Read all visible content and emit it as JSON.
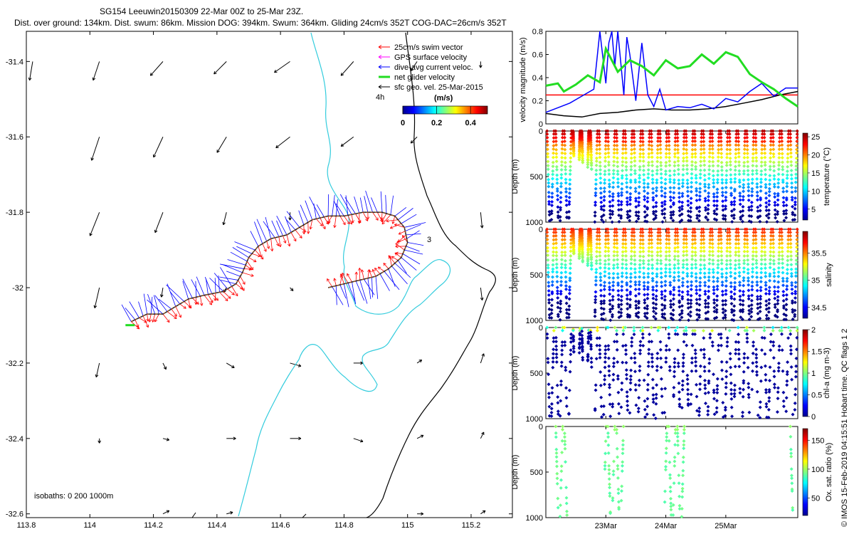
{
  "header": {
    "title_line1": "SG154 Leeuwin20150309 22-Mar 00Z to 25-Mar 23Z.",
    "title_line2": "Dist. over ground: 134km. Dist. swum: 86km. Mission DOG: 394km. Swum: 364km. Gliding 24cm/s 352T COG-DAC=26cm/s 352T"
  },
  "footer": {
    "credit": "© IMOS 15-Feb-2019 04:15:51 Hobart time. QC flags 1  2"
  },
  "colors": {
    "swim_vector": "#ff0000",
    "gps_velocity": "#ff00ff",
    "dac": "#0000ff",
    "net_velocity": "#22dd22",
    "geostrophic": "#000000",
    "isobath_200": "#33ccdd",
    "coast": "#000000"
  },
  "chart_data": [
    {
      "id": "map",
      "type": "vector-map",
      "xticks": [
        "113.8",
        "114",
        "114.2",
        "114.4",
        "114.6",
        "114.8",
        "115",
        "115.2"
      ],
      "yticks": [
        "-31.4",
        "-31.6",
        "-31.8",
        "-32",
        "-32.2",
        "-32.4",
        "-32.6"
      ],
      "xlim": [
        113.8,
        115.33
      ],
      "ylim": [
        -32.61,
        -31.32
      ],
      "legend": [
        {
          "label": "25cm/s swim vector",
          "color": "#ff0000"
        },
        {
          "label": "GPS surface velocity",
          "color": "#ff00ff"
        },
        {
          "label": "dive-avg current veloc.",
          "color": "#0000ff"
        },
        {
          "label": "net glider velocity",
          "color": "#22dd22"
        },
        {
          "label": "sfc geo. vel. 25-Mar-2015",
          "color": "#000000"
        }
      ],
      "time_step_label": "4h",
      "colorbar": {
        "title": "(m/s)",
        "ticks": [
          "0",
          "0.2",
          "0.4"
        ],
        "range": [
          0,
          0.5
        ]
      },
      "isobaths_label": "isobaths: 0   200  1000m",
      "track_day_labels": [
        "3"
      ],
      "track": [
        [
          114.13,
          -32.09
        ],
        [
          114.18,
          -32.07
        ],
        [
          114.23,
          -32.07
        ],
        [
          114.27,
          -32.05
        ],
        [
          114.31,
          -32.03
        ],
        [
          114.36,
          -32.02
        ],
        [
          114.42,
          -32.01
        ],
        [
          114.46,
          -31.99
        ],
        [
          114.48,
          -31.96
        ],
        [
          114.5,
          -31.92
        ],
        [
          114.53,
          -31.89
        ],
        [
          114.57,
          -31.87
        ],
        [
          114.62,
          -31.86
        ],
        [
          114.66,
          -31.84
        ],
        [
          114.7,
          -31.82
        ],
        [
          114.75,
          -31.81
        ],
        [
          114.8,
          -31.81
        ],
        [
          114.86,
          -31.8
        ],
        [
          114.92,
          -31.8
        ],
        [
          114.96,
          -31.81
        ],
        [
          114.99,
          -31.84
        ],
        [
          115.0,
          -31.88
        ],
        [
          114.98,
          -31.92
        ],
        [
          114.94,
          -31.95
        ],
        [
          114.9,
          -31.97
        ],
        [
          114.85,
          -31.98
        ],
        [
          114.8,
          -31.99
        ],
        [
          114.75,
          -32.0
        ]
      ],
      "geostrophic_vectors": [
        {
          "lon": 113.82,
          "lat": -31.4,
          "u": -0.02,
          "v": -0.12
        },
        {
          "lon": 114.03,
          "lat": -31.4,
          "u": -0.04,
          "v": -0.12
        },
        {
          "lon": 114.23,
          "lat": -31.4,
          "u": -0.08,
          "v": -0.09
        },
        {
          "lon": 114.43,
          "lat": -31.4,
          "u": -0.08,
          "v": -0.08
        },
        {
          "lon": 114.63,
          "lat": -31.4,
          "u": -0.1,
          "v": -0.07
        },
        {
          "lon": 114.83,
          "lat": -31.4,
          "u": -0.08,
          "v": -0.09
        },
        {
          "lon": 115.03,
          "lat": -31.4,
          "u": -0.04,
          "v": -0.06
        },
        {
          "lon": 115.23,
          "lat": -31.4,
          "u": 0.0,
          "v": -0.04
        },
        {
          "lon": 114.03,
          "lat": -31.6,
          "u": -0.05,
          "v": -0.15
        },
        {
          "lon": 114.23,
          "lat": -31.6,
          "u": -0.06,
          "v": -0.13
        },
        {
          "lon": 114.43,
          "lat": -31.6,
          "u": -0.06,
          "v": -0.1
        },
        {
          "lon": 114.63,
          "lat": -31.6,
          "u": -0.09,
          "v": -0.07
        },
        {
          "lon": 114.83,
          "lat": -31.6,
          "u": -0.08,
          "v": -0.06
        },
        {
          "lon": 115.03,
          "lat": -31.6,
          "u": -0.04,
          "v": -0.04
        },
        {
          "lon": 114.03,
          "lat": -31.8,
          "u": -0.06,
          "v": -0.15
        },
        {
          "lon": 114.23,
          "lat": -31.8,
          "u": -0.05,
          "v": -0.13
        },
        {
          "lon": 114.43,
          "lat": -31.8,
          "u": -0.02,
          "v": -0.08
        },
        {
          "lon": 114.63,
          "lat": -31.8,
          "u": 0.0,
          "v": -0.05
        },
        {
          "lon": 115.23,
          "lat": -31.8,
          "u": 0.01,
          "v": -0.1
        },
        {
          "lon": 114.03,
          "lat": -32.0,
          "u": -0.03,
          "v": -0.13
        },
        {
          "lon": 114.23,
          "lat": -32.0,
          "u": -0.01,
          "v": -0.06
        },
        {
          "lon": 114.43,
          "lat": -32.0,
          "u": -0.02,
          "v": -0.03
        },
        {
          "lon": 114.63,
          "lat": -32.0,
          "u": 0.02,
          "v": -0.02
        },
        {
          "lon": 115.23,
          "lat": -32.0,
          "u": 0.01,
          "v": -0.08
        },
        {
          "lon": 114.03,
          "lat": -32.2,
          "u": -0.02,
          "v": -0.09
        },
        {
          "lon": 114.23,
          "lat": -32.2,
          "u": 0.02,
          "v": -0.04
        },
        {
          "lon": 114.43,
          "lat": -32.2,
          "u": 0.05,
          "v": -0.03
        },
        {
          "lon": 114.63,
          "lat": -32.2,
          "u": 0.07,
          "v": -0.02
        },
        {
          "lon": 114.83,
          "lat": -32.2,
          "u": 0.06,
          "v": 0.0
        },
        {
          "lon": 115.03,
          "lat": -32.2,
          "u": 0.03,
          "v": 0.02
        },
        {
          "lon": 115.23,
          "lat": -32.2,
          "u": 0.02,
          "v": 0.06
        },
        {
          "lon": 114.03,
          "lat": -32.4,
          "u": 0.0,
          "v": -0.03
        },
        {
          "lon": 114.23,
          "lat": -32.4,
          "u": 0.04,
          "v": -0.01
        },
        {
          "lon": 114.43,
          "lat": -32.4,
          "u": 0.06,
          "v": 0.0
        },
        {
          "lon": 114.63,
          "lat": -32.4,
          "u": 0.07,
          "v": 0.0
        },
        {
          "lon": 114.83,
          "lat": -32.4,
          "u": 0.06,
          "v": -0.02
        },
        {
          "lon": 115.03,
          "lat": -32.4,
          "u": 0.04,
          "v": 0.02
        },
        {
          "lon": 115.23,
          "lat": -32.4,
          "u": 0.02,
          "v": 0.04
        },
        {
          "lon": 114.23,
          "lat": -32.6,
          "u": 0.04,
          "v": 0.02
        },
        {
          "lon": 114.43,
          "lat": -32.6,
          "u": 0.04,
          "v": 0.01
        },
        {
          "lon": 115.03,
          "lat": -32.6,
          "u": 0.04,
          "v": 0.0
        },
        {
          "lon": 115.23,
          "lat": -32.6,
          "u": 0.03,
          "v": 0.02
        }
      ]
    },
    {
      "id": "velocity",
      "type": "line",
      "ylabel": "velocity magnitude (m/s)",
      "yticks": [
        "0",
        "0.2",
        "0.4",
        "0.6",
        "0.8"
      ],
      "ylim": [
        0,
        0.8
      ],
      "series": [
        {
          "color": "#ff0000",
          "x": [
            0,
            4.2
          ],
          "y": [
            0.25,
            0.25
          ]
        },
        {
          "color": "#000000",
          "x": [
            0,
            0.3,
            0.6,
            0.9,
            1.2,
            1.5,
            1.8,
            2.1,
            2.4,
            2.7,
            3.0,
            3.3,
            3.6,
            3.9,
            4.2
          ],
          "y": [
            0.09,
            0.07,
            0.06,
            0.09,
            0.1,
            0.12,
            0.13,
            0.12,
            0.12,
            0.13,
            0.15,
            0.18,
            0.21,
            0.25,
            0.28
          ]
        },
        {
          "color": "#0000ff",
          "x": [
            0,
            0.2,
            0.4,
            0.6,
            0.8,
            0.9,
            1.0,
            1.05,
            1.1,
            1.15,
            1.2,
            1.3,
            1.35,
            1.4,
            1.5,
            1.6,
            1.7,
            1.8,
            1.9,
            2.0,
            2.2,
            2.4,
            2.6,
            2.8,
            3.0,
            3.2,
            3.4,
            3.6,
            3.8,
            4.0,
            4.2
          ],
          "y": [
            0.1,
            0.14,
            0.18,
            0.24,
            0.3,
            0.8,
            0.35,
            0.7,
            0.8,
            0.5,
            0.8,
            0.25,
            0.75,
            0.6,
            0.2,
            0.7,
            0.25,
            0.15,
            0.3,
            0.12,
            0.15,
            0.14,
            0.17,
            0.13,
            0.22,
            0.19,
            0.28,
            0.35,
            0.24,
            0.31,
            0.31
          ]
        },
        {
          "color": "#22dd22",
          "x": [
            0,
            0.2,
            0.3,
            0.5,
            0.7,
            0.9,
            1.0,
            1.2,
            1.4,
            1.6,
            1.8,
            2.0,
            2.2,
            2.4,
            2.6,
            2.8,
            3.0,
            3.2,
            3.4,
            3.6,
            3.8,
            4.0,
            4.2
          ],
          "y": [
            0.33,
            0.35,
            0.28,
            0.34,
            0.42,
            0.36,
            0.65,
            0.45,
            0.55,
            0.5,
            0.42,
            0.55,
            0.48,
            0.5,
            0.6,
            0.52,
            0.62,
            0.58,
            0.43,
            0.36,
            0.3,
            0.22,
            0.15
          ]
        }
      ]
    },
    {
      "id": "temperature",
      "type": "scatter",
      "ylabel": "Depth (m)",
      "clabel": "temperature (°C)",
      "yticks": [
        "0",
        "500",
        "1000"
      ],
      "ylim": [
        0,
        1000
      ],
      "cticks": [
        "5",
        "10",
        "15",
        "20",
        "25"
      ],
      "crange": [
        2,
        26
      ]
    },
    {
      "id": "salinity",
      "type": "scatter",
      "ylabel": "Depth (m)",
      "clabel": "salinity",
      "yticks": [
        "0",
        "500",
        "1000"
      ],
      "ylim": [
        0,
        1000
      ],
      "cticks": [
        "34.5",
        "35",
        "35.5"
      ],
      "crange": [
        34.3,
        35.9
      ]
    },
    {
      "id": "chla",
      "type": "scatter",
      "ylabel": "Depth (m)",
      "clabel": "chl-a (mg m-3)",
      "yticks": [
        "0",
        "500",
        "1000"
      ],
      "ylim": [
        0,
        1000
      ],
      "cticks": [
        "0",
        "0.5",
        "1",
        "1.5",
        "2"
      ],
      "crange": [
        0,
        2
      ]
    },
    {
      "id": "oxygen",
      "type": "scatter",
      "ylabel": "Depth (m)",
      "clabel": "Ox. sat. ratio (%)",
      "yticks": [
        "0",
        "500",
        "1000"
      ],
      "ylim": [
        0,
        1000
      ],
      "cticks": [
        "50",
        "100",
        "150"
      ],
      "crange": [
        20,
        170
      ]
    }
  ],
  "time_axis": {
    "ticks": [
      "23Mar",
      "24Mar",
      "25Mar"
    ],
    "tick_days": [
      1,
      2,
      3
    ],
    "xlim": [
      0,
      4.2
    ]
  }
}
